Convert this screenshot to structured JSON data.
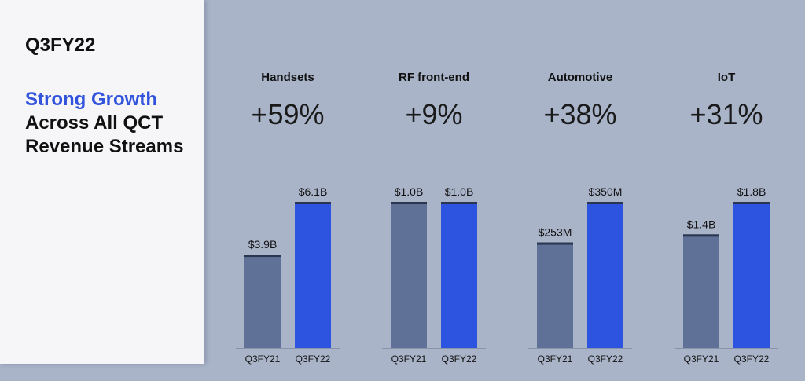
{
  "sidebar": {
    "period": "Q3FY22",
    "headline_accent": "Strong Growth",
    "headline_rest": "Across All QCT Revenue Streams"
  },
  "colors": {
    "background": "#a9b4c9",
    "panel": "#f6f6f8",
    "accent": "#3253dc",
    "bar_prev": "#5f7196",
    "bar_curr": "#2c54e0",
    "bar_cap": "#2a3550"
  },
  "chart_data": [
    {
      "type": "bar",
      "title": "Handsets",
      "growth": "+59%",
      "categories": [
        "Q3FY21",
        "Q3FY22"
      ],
      "values": [
        3.9,
        6.1
      ],
      "unit": "B",
      "data_labels": [
        "$3.9B",
        "$6.1B"
      ]
    },
    {
      "type": "bar",
      "title": "RF front-end",
      "growth": "+9%",
      "categories": [
        "Q3FY21",
        "Q3FY22"
      ],
      "values": [
        1.0,
        1.0
      ],
      "unit": "B",
      "data_labels": [
        "$1.0B",
        "$1.0B"
      ]
    },
    {
      "type": "bar",
      "title": "Automotive",
      "growth": "+38%",
      "categories": [
        "Q3FY21",
        "Q3FY22"
      ],
      "values": [
        253,
        350
      ],
      "unit": "M",
      "data_labels": [
        "$253M",
        "$350M"
      ]
    },
    {
      "type": "bar",
      "title": "IoT",
      "growth": "+31%",
      "categories": [
        "Q3FY21",
        "Q3FY22"
      ],
      "values": [
        1.4,
        1.8
      ],
      "unit": "B",
      "data_labels": [
        "$1.4B",
        "$1.8B"
      ]
    }
  ]
}
